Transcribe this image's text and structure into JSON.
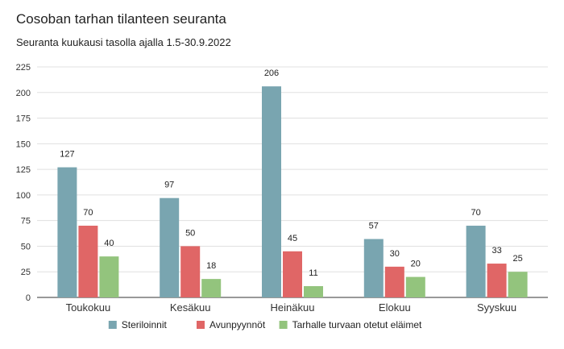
{
  "chart_data": {
    "type": "bar",
    "title": "Cosoban tarhan tilanteen seuranta",
    "subtitle": "Seuranta kuukausi tasolla ajalla 1.5-30.9.2022",
    "categories": [
      "Toukokuu",
      "Kesäkuu",
      "Heinäkuu",
      "Elokuu",
      "Syyskuu"
    ],
    "series": [
      {
        "name": "Steriloinnit",
        "values": [
          127,
          97,
          206,
          57,
          70
        ],
        "color": "#79a5b0"
      },
      {
        "name": "Avunpyynnöt",
        "values": [
          70,
          50,
          45,
          30,
          33
        ],
        "color": "#e06666"
      },
      {
        "name": "Tarhalle turvaan otetut eläimet",
        "values": [
          40,
          18,
          11,
          20,
          25
        ],
        "color": "#93c47d"
      }
    ],
    "ylim": [
      0,
      225
    ],
    "yticks": [
      0,
      25,
      50,
      75,
      100,
      125,
      150,
      175,
      200,
      225
    ],
    "grid": true,
    "legend": "bottom-center",
    "xlabel": "",
    "ylabel": ""
  }
}
